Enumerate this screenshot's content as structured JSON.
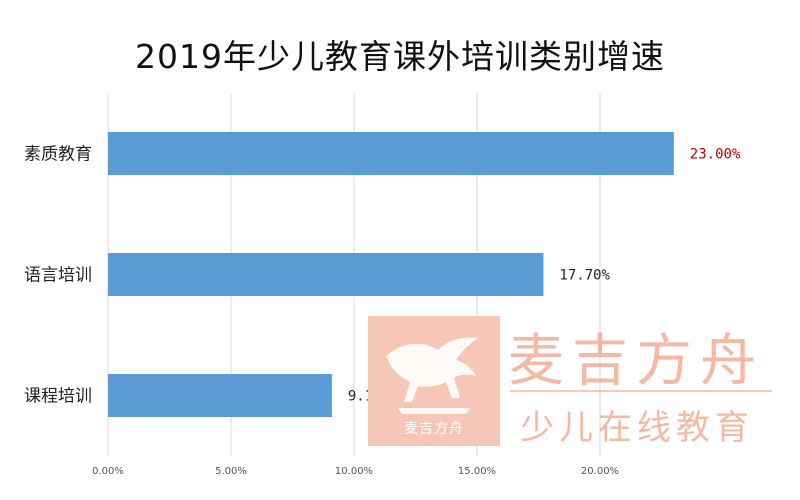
{
  "chart_data": {
    "type": "bar",
    "orientation": "horizontal",
    "title": "2019年少儿教育课外培训类别增速",
    "categories": [
      "素质教育",
      "语言培训",
      "课程培训"
    ],
    "values": [
      23.0,
      17.7,
      9.1
    ],
    "value_labels": [
      "23.00%",
      "17.70%",
      "9.10%"
    ],
    "highlight_value_label_index": 0,
    "xlim": [
      0,
      25
    ],
    "xticks": [
      0,
      5,
      10,
      15,
      20
    ],
    "xtick_labels": [
      "0.00%",
      "5.00%",
      "10.00%",
      "15.00%",
      "20.00%"
    ],
    "xlabel": "",
    "ylabel": "",
    "grid": true,
    "legend": "none",
    "colors": {
      "bar": "#5b9bd5",
      "highlight_label": "#c00000",
      "label": "#222222",
      "grid": "#d9d9d9"
    }
  },
  "watermark": {
    "box_text": "麦吉方舟",
    "brand": "麦吉方舟",
    "slogan": "少儿在线教育",
    "icon": "winged-horse-logo"
  }
}
